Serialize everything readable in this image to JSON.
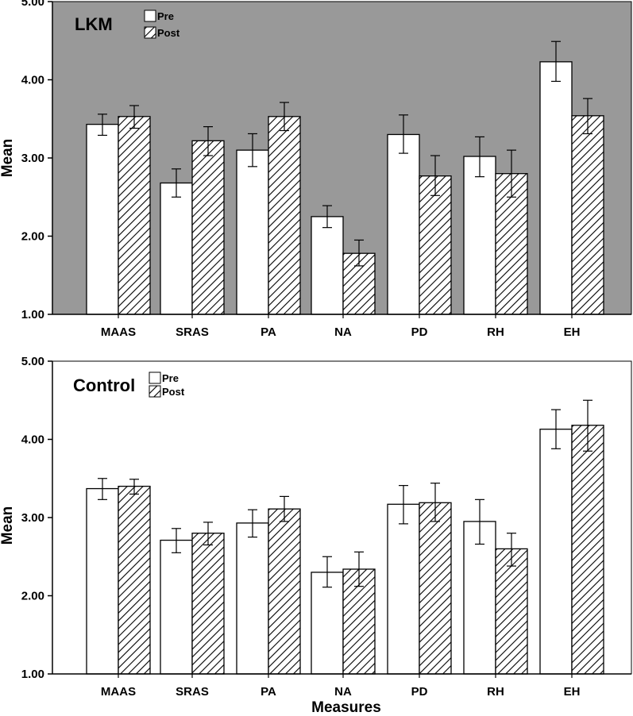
{
  "chart_data": [
    {
      "type": "bar",
      "title": "LKM",
      "ylabel": "Mean",
      "xlabel": "",
      "ylim": [
        1.0,
        5.0
      ],
      "yticks": [
        "1.00",
        "2.00",
        "3.00",
        "4.00",
        "5.00"
      ],
      "ytick_values": [
        1,
        2,
        3,
        4,
        5
      ],
      "background": "#999999",
      "categories": [
        "MAAS",
        "SRAS",
        "PA",
        "NA",
        "PD",
        "RH",
        "EH"
      ],
      "legend": [
        "Pre",
        "Post"
      ],
      "series": [
        {
          "name": "Pre",
          "pattern": "solid",
          "color": "#ffffff",
          "values": [
            3.43,
            2.68,
            3.1,
            2.25,
            3.3,
            3.02,
            4.23
          ],
          "err_low": [
            3.29,
            2.5,
            2.89,
            2.11,
            3.06,
            2.76,
            3.98
          ],
          "err_high": [
            3.56,
            2.86,
            3.31,
            2.39,
            3.55,
            3.27,
            4.49
          ]
        },
        {
          "name": "Post",
          "pattern": "hatched",
          "color": "#ffffff",
          "values": [
            3.53,
            3.22,
            3.53,
            1.78,
            2.77,
            2.8,
            3.54
          ],
          "err_low": [
            3.38,
            3.03,
            3.35,
            1.62,
            2.52,
            2.5,
            3.31
          ],
          "err_high": [
            3.67,
            3.4,
            3.71,
            1.95,
            3.03,
            3.1,
            3.76
          ]
        }
      ]
    },
    {
      "type": "bar",
      "title": "Control",
      "ylabel": "Mean",
      "xlabel": "Measures",
      "ylim": [
        1.0,
        5.0
      ],
      "yticks": [
        "1.00",
        "2.00",
        "3.00",
        "4.00",
        "5.00"
      ],
      "ytick_values": [
        1,
        2,
        3,
        4,
        5
      ],
      "background": "#ffffff",
      "categories": [
        "MAAS",
        "SRAS",
        "PA",
        "NA",
        "PD",
        "RH",
        "EH"
      ],
      "legend": [
        "Pre",
        "Post"
      ],
      "series": [
        {
          "name": "Pre",
          "pattern": "solid",
          "color": "#ffffff",
          "values": [
            3.37,
            2.71,
            2.93,
            2.3,
            3.17,
            2.95,
            4.13
          ],
          "err_low": [
            3.23,
            2.55,
            2.75,
            2.11,
            2.92,
            2.66,
            3.88
          ],
          "err_high": [
            3.5,
            2.86,
            3.1,
            2.5,
            3.41,
            3.23,
            4.38
          ]
        },
        {
          "name": "Post",
          "pattern": "hatched",
          "color": "#ffffff",
          "values": [
            3.4,
            2.8,
            3.11,
            2.34,
            3.19,
            2.6,
            4.18
          ],
          "err_low": [
            3.3,
            2.65,
            2.95,
            2.12,
            2.95,
            2.38,
            3.85
          ],
          "err_high": [
            3.49,
            2.94,
            3.27,
            2.56,
            3.44,
            2.8,
            4.5
          ]
        }
      ]
    }
  ]
}
